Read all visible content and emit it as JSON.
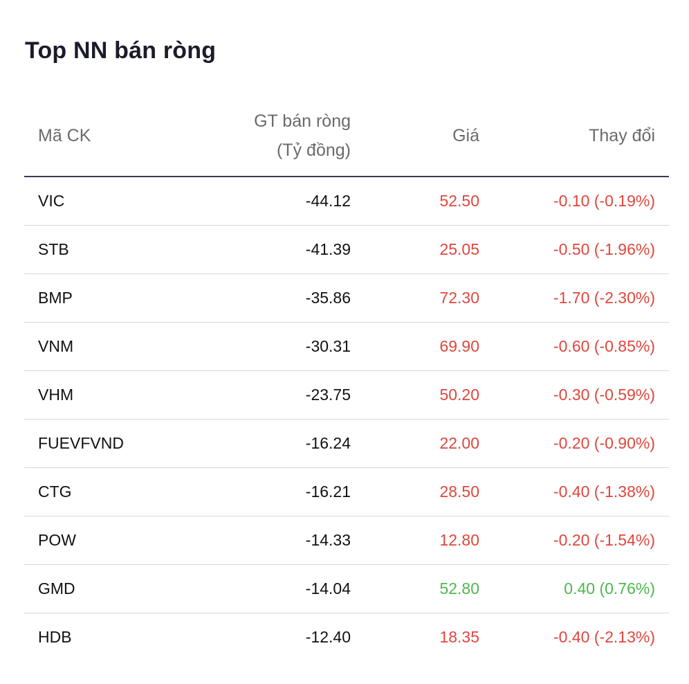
{
  "widget": {
    "title": "Top NN bán ròng"
  },
  "table": {
    "headers": {
      "symbol": "Mã CK",
      "net_sell_line1": "GT bán ròng",
      "net_sell_line2": "(Tỷ đồng)",
      "price": "Giá",
      "change": "Thay đổi"
    },
    "rows": [
      {
        "symbol": "VIC",
        "net_sell": "-44.12",
        "price": "52.50",
        "change": "-0.10 (-0.19%)",
        "direction": "down"
      },
      {
        "symbol": "STB",
        "net_sell": "-41.39",
        "price": "25.05",
        "change": "-0.50 (-1.96%)",
        "direction": "down"
      },
      {
        "symbol": "BMP",
        "net_sell": "-35.86",
        "price": "72.30",
        "change": "-1.70 (-2.30%)",
        "direction": "down"
      },
      {
        "symbol": "VNM",
        "net_sell": "-30.31",
        "price": "69.90",
        "change": "-0.60 (-0.85%)",
        "direction": "down"
      },
      {
        "symbol": "VHM",
        "net_sell": "-23.75",
        "price": "50.20",
        "change": "-0.30 (-0.59%)",
        "direction": "down"
      },
      {
        "symbol": "FUEVFVND",
        "net_sell": "-16.24",
        "price": "22.00",
        "change": "-0.20 (-0.90%)",
        "direction": "down"
      },
      {
        "symbol": "CTG",
        "net_sell": "-16.21",
        "price": "28.50",
        "change": "-0.40 (-1.38%)",
        "direction": "down"
      },
      {
        "symbol": "POW",
        "net_sell": "-14.33",
        "price": "12.80",
        "change": "-0.20 (-1.54%)",
        "direction": "down"
      },
      {
        "symbol": "GMD",
        "net_sell": "-14.04",
        "price": "52.80",
        "change": "0.40 (0.76%)",
        "direction": "up"
      },
      {
        "symbol": "HDB",
        "net_sell": "-12.40",
        "price": "18.35",
        "change": "-0.40 (-2.13%)",
        "direction": "down"
      }
    ]
  },
  "colors": {
    "down": "#e0463c",
    "up": "#4cb84c",
    "title": "#1b1b2b",
    "header_text": "#6a6a6a"
  }
}
